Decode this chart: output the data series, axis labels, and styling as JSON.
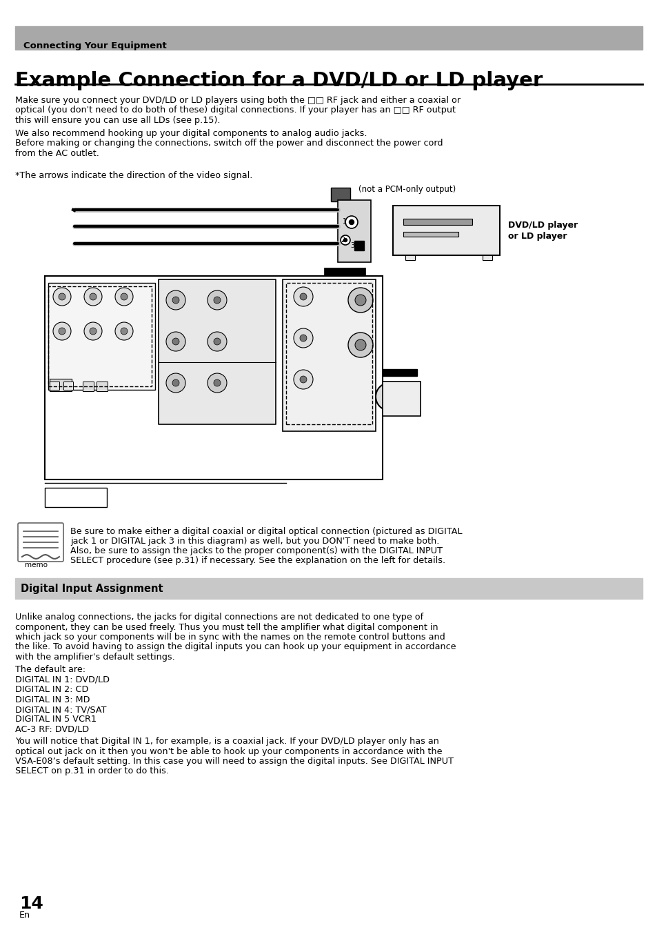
{
  "page_bg": "#ffffff",
  "header_bg": "#a8a8a8",
  "header_text": "Connecting Your Equipment",
  "title": "Example Connection for a DVD/LD or LD player",
  "body_para1a": "Make sure you connect your DVD/LD or LD players using both the □□ RF jack and either a coaxial or",
  "body_para1b": "optical (you don't need to do both of these) digital connections. If your player has an □□ RF output",
  "body_para1c": "this will ensure you can use all LDs (see p.15).",
  "body_para2": "We also recommend hooking up your digital components to analog audio jacks.",
  "body_para3a": "Before making or changing the connections, switch off the power and disconnect the power cord",
  "body_para3b": "from the AC outlet.",
  "arrows_note": "*The arrows indicate the direction of the video signal.",
  "pcm_note": "(not a PCM-only output)",
  "dvd_label1": "DVD/LD player",
  "dvd_label2": "or LD player",
  "section2_bg": "#c8c8c8",
  "section2_title": "Digital Input Assignment",
  "memo_para1": "Be sure to make either a digital coaxial or digital optical connection (pictured as DIGITAL",
  "memo_para2": "jack 1 or DIGITAL jack 3 in this diagram) as well, but you DON'T need to make both.",
  "memo_para3": "Also, be sure to assign the jacks to the proper component(s) with the DIGITAL INPUT",
  "memo_para4": "SELECT procedure (see p.31) if necessary. See the explanation on the left for details.",
  "body2_para1a": "Unlike analog connections, the jacks for digital connections are not dedicated to one type of",
  "body2_para1b": "component, they can be used freely. Thus you must tell the amplifier what digital component in",
  "body2_para1c": "which jack so your components will be in sync with the names on the remote control buttons and",
  "body2_para1d": "the like. To avoid having to assign the digital inputs you can hook up your equipment in accordance",
  "body2_para1e": "with the amplifier's default settings.",
  "default_intro": "The default are:",
  "default_1": "DIGITAL IN 1: DVD/LD",
  "default_2": "DIGITAL IN 2: CD",
  "default_3": "DIGITAL IN 3: MD",
  "default_4": "DIGITAL IN 4: TV/SAT",
  "default_5": "DIGITAL IN 5 VCR1",
  "default_6": "AC-3 RF: DVD/LD",
  "body2_para2a": "You will notice that Digital IN 1, for example, is a coaxial jack. If your DVD/LD player only has an",
  "body2_para2b": "optical out jack on it then you won't be able to hook up your components in accordance with the",
  "body2_para2c": "VSA-E08’s default setting. In this case you will need to assign the digital inputs. See DIGITAL INPUT",
  "body2_para2d": "SELECT on p.31 in order to do this.",
  "page_num": "14",
  "page_lang": "En"
}
